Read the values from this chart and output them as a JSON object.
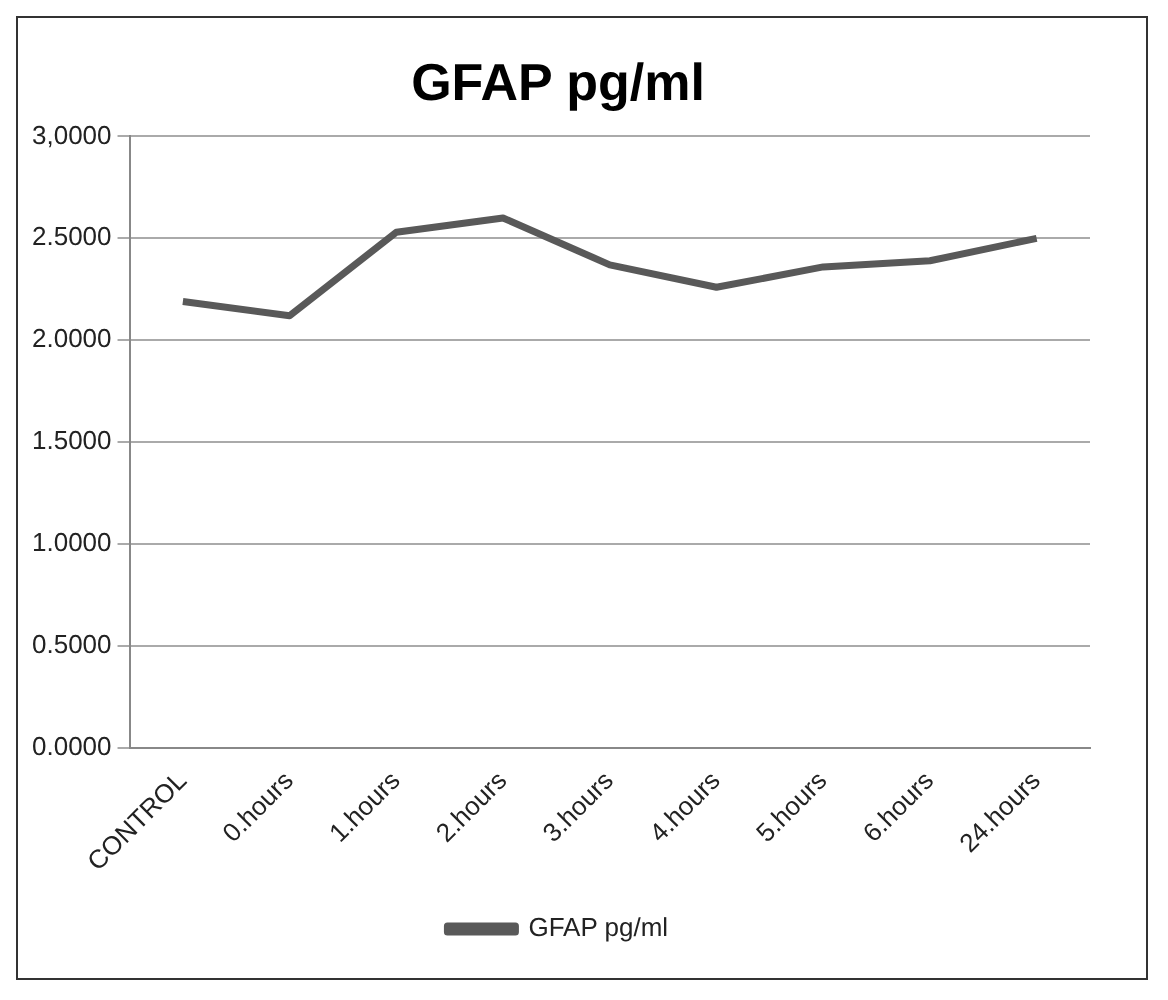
{
  "chart_data": {
    "type": "line",
    "title": "GFAP pg/ml",
    "categories": [
      "CONTROL",
      "0.hours",
      "1.hours",
      "2.hours",
      "3.hours",
      "4.hours",
      "5.hours",
      "6.hours",
      "24.hours"
    ],
    "series": [
      {
        "name": "GFAP pg/ml",
        "color": "#595959",
        "values": [
          2.19,
          2.12,
          2.53,
          2.6,
          2.37,
          2.26,
          2.36,
          2.39,
          2.5
        ]
      }
    ],
    "ylim": [
      0,
      3
    ],
    "yticks": [
      {
        "value": 0,
        "label": "0.0000"
      },
      {
        "value": 0.5,
        "label": "0.5000"
      },
      {
        "value": 1,
        "label": "1.0000"
      },
      {
        "value": 1.5,
        "label": "1.5000"
      },
      {
        "value": 2,
        "label": "2.0000"
      },
      {
        "value": 2.5,
        "label": "2.5000"
      },
      {
        "value": 3,
        "label": "3,0000"
      }
    ],
    "grid": "y",
    "legend": "bottom",
    "marker": "none",
    "line_style": "solid"
  }
}
